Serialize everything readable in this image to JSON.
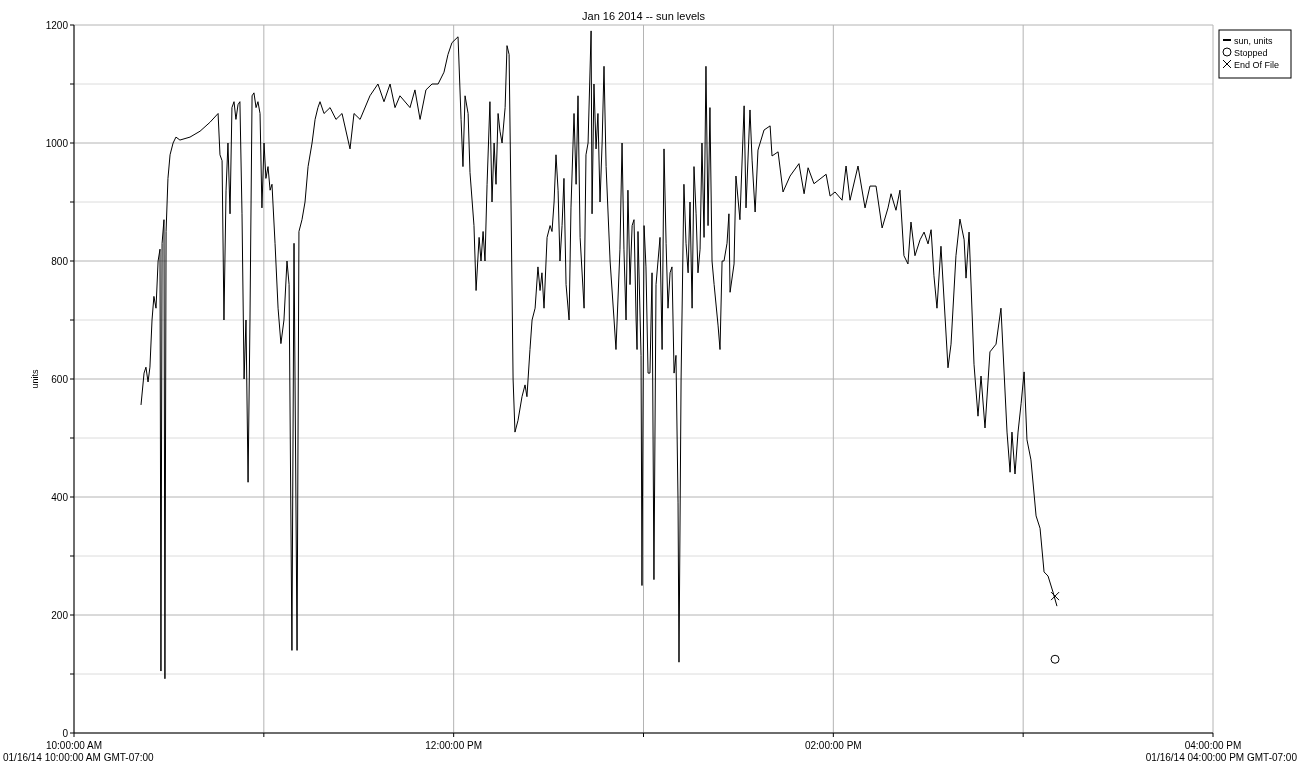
{
  "chart_data": {
    "type": "line",
    "title": "Jan 16 2014 -- sun levels",
    "ylabel": "units",
    "xlim": [
      10,
      16
    ],
    "xticks": [
      {
        "value": 10,
        "label": "10:00:00 AM"
      },
      {
        "value": 11,
        "label": null
      },
      {
        "value": 12,
        "label": "12:00:00 PM"
      },
      {
        "value": 13,
        "label": null
      },
      {
        "value": 14,
        "label": "02:00:00 PM"
      },
      {
        "value": 15,
        "label": null
      },
      {
        "value": 16,
        "label": "04:00:00 PM"
      }
    ],
    "ylim": [
      0,
      1200
    ],
    "yticks": [
      0,
      {
        "value": 100,
        "label": null
      },
      200,
      {
        "value": 300,
        "label": null
      },
      400,
      {
        "value": 500,
        "label": null
      },
      600,
      {
        "value": 700,
        "label": null
      },
      800,
      {
        "value": 900,
        "label": null
      },
      1000,
      {
        "value": 1100,
        "label": null
      },
      1200
    ],
    "grid": true,
    "legend": "top right",
    "annotations": [
      "01/16/14 10:00:00 AM GMT-07:00",
      "01/16/14 04:00:00 PM GMT-07:00"
    ],
    "series": [
      {
        "name": "sun, units",
        "color": "#000000",
        "marker": "none",
        "line_style": "solid",
        "x": [
          10.353,
          10.369,
          10.379,
          10.39,
          10.4,
          10.411,
          10.421,
          10.432,
          10.443,
          10.453,
          10.458,
          10.464,
          10.474,
          10.479,
          10.485,
          10.495,
          10.506,
          10.522,
          10.537,
          10.558,
          10.611,
          10.664,
          10.716,
          10.759,
          10.769,
          10.78,
          10.79,
          10.801,
          10.811,
          10.822,
          10.832,
          10.843,
          10.853,
          10.864,
          10.874,
          10.885,
          10.896,
          10.906,
          10.917,
          10.927,
          10.938,
          10.948,
          10.959,
          10.969,
          10.98,
          10.99,
          11.001,
          11.011,
          11.022,
          11.033,
          11.043,
          11.059,
          11.075,
          11.09,
          11.106,
          11.122,
          11.133,
          11.148,
          11.159,
          11.175,
          11.185,
          11.201,
          11.217,
          11.233,
          11.254,
          11.27,
          11.285,
          11.296,
          11.317,
          11.349,
          11.38,
          11.412,
          11.454,
          11.475,
          11.507,
          11.559,
          11.601,
          11.633,
          11.665,
          11.691,
          11.717,
          11.77,
          11.796,
          11.823,
          11.854,
          11.886,
          11.918,
          11.949,
          11.97,
          11.991,
          12.023,
          12.039,
          12.049,
          12.06,
          12.076,
          12.086,
          12.107,
          12.118,
          12.134,
          12.144,
          12.155,
          12.165,
          12.176,
          12.191,
          12.202,
          12.213,
          12.223,
          12.234,
          12.244,
          12.255,
          12.271,
          12.281,
          12.292,
          12.302,
          12.313,
          12.323,
          12.339,
          12.36,
          12.376,
          12.386,
          12.402,
          12.413,
          12.429,
          12.444,
          12.455,
          12.465,
          12.476,
          12.492,
          12.508,
          12.518,
          12.529,
          12.539,
          12.55,
          12.56,
          12.571,
          12.581,
          12.592,
          12.608,
          12.618,
          12.634,
          12.645,
          12.655,
          12.666,
          12.687,
          12.697,
          12.708,
          12.724,
          12.729,
          12.739,
          12.75,
          12.76,
          12.771,
          12.782,
          12.792,
          12.803,
          12.824,
          12.845,
          12.855,
          12.876,
          12.887,
          12.897,
          12.908,
          12.918,
          12.929,
          12.94,
          12.95,
          12.961,
          12.966,
          12.971,
          12.987,
          12.992,
          13.003,
          13.013,
          13.024,
          13.034,
          13.045,
          13.055,
          13.066,
          13.087,
          13.098,
          13.108,
          13.119,
          13.129,
          13.14,
          13.15,
          13.161,
          13.171,
          13.182,
          13.187,
          13.198,
          13.213,
          13.224,
          13.235,
          13.245,
          13.256,
          13.266,
          13.277,
          13.287,
          13.298,
          13.308,
          13.319,
          13.329,
          13.34,
          13.35,
          13.361,
          13.372,
          13.393,
          13.403,
          13.414,
          13.424,
          13.44,
          13.45,
          13.456,
          13.477,
          13.487,
          13.508,
          13.53,
          13.54,
          13.561,
          13.572,
          13.588,
          13.603,
          13.635,
          13.667,
          13.677,
          13.709,
          13.735,
          13.772,
          13.819,
          13.846,
          13.867,
          13.898,
          13.962,
          13.983,
          14.009,
          14.046,
          14.067,
          14.088,
          14.13,
          14.167,
          14.193,
          14.225,
          14.257,
          14.288,
          14.304,
          14.33,
          14.351,
          14.372,
          14.393,
          14.409,
          14.43,
          14.457,
          14.478,
          14.499,
          14.515,
          14.53,
          14.546,
          14.567,
          14.604,
          14.62,
          14.646,
          14.667,
          14.689,
          14.699,
          14.715,
          14.741,
          14.762,
          14.778,
          14.799,
          14.825,
          14.857,
          14.883,
          14.915,
          14.931,
          14.941,
          14.957,
          14.973,
          14.989,
          15.005,
          15.02,
          15.041,
          15.068,
          15.089,
          15.11,
          15.131,
          15.157,
          15.178
        ],
        "values": [
          556,
          610,
          620,
          595,
          620,
          700,
          740,
          720,
          800,
          820,
          105,
          830,
          870,
          92,
          850,
          940,
          980,
          1000,
          1010,
          1005,
          1010,
          1020,
          1035,
          1050,
          980,
          970,
          700,
          920,
          1000,
          880,
          1060,
          1070,
          1040,
          1065,
          1070,
          880,
          600,
          700,
          425,
          700,
          1080,
          1085,
          1060,
          1070,
          1050,
          890,
          1000,
          940,
          960,
          920,
          930,
          830,
          720,
          660,
          700,
          800,
          760,
          140,
          830,
          140,
          850,
          870,
          900,
          960,
          1000,
          1040,
          1060,
          1070,
          1050,
          1060,
          1040,
          1050,
          990,
          1050,
          1040,
          1080,
          1100,
          1070,
          1100,
          1060,
          1080,
          1060,
          1090,
          1040,
          1090,
          1100,
          1100,
          1120,
          1150,
          1170,
          1180,
          1040,
          960,
          1080,
          1050,
          950,
          860,
          750,
          840,
          800,
          850,
          800,
          930,
          1070,
          900,
          1000,
          930,
          1050,
          1020,
          1000,
          1060,
          1165,
          1150,
          900,
          600,
          510,
          530,
          570,
          590,
          570,
          650,
          700,
          720,
          790,
          750,
          780,
          720,
          840,
          860,
          850,
          900,
          980,
          920,
          800,
          860,
          940,
          760,
          700,
          890,
          1050,
          930,
          1080,
          840,
          720,
          980,
          1000,
          1190,
          880,
          1100,
          990,
          1050,
          900,
          1000,
          1130,
          960,
          800,
          700,
          650,
          820,
          1000,
          820,
          700,
          920,
          760,
          860,
          870,
          700,
          650,
          850,
          640,
          250,
          860,
          790,
          610,
          610,
          780,
          260,
          760,
          840,
          650,
          990,
          830,
          720,
          780,
          790,
          610,
          640,
          390,
          120,
          600,
          930,
          830,
          780,
          900,
          720,
          960,
          880,
          780,
          820,
          1000,
          840,
          1130,
          860,
          1060,
          800,
          760,
          690,
          650,
          800,
          800,
          830,
          880,
          747,
          795,
          944,
          870,
          1063,
          890,
          1056,
          971,
          883,
          988,
          1022,
          1029,
          978,
          985,
          917,
          944,
          965,
          914,
          958,
          931,
          947,
          910,
          917,
          903,
          961,
          903,
          961,
          890,
          927,
          927,
          856,
          890,
          914,
          886,
          920,
          809,
          795,
          866,
          809,
          836,
          849,
          829,
          853,
          775,
          720,
          825,
          619,
          659,
          809,
          871,
          836,
          771,
          849,
          625,
          537,
          605,
          517,
          646,
          659,
          720,
          510,
          442,
          510,
          439,
          510,
          558,
          612,
          497,
          463,
          368,
          347,
          273,
          266,
          239,
          215
        ]
      },
      {
        "name": "Stopped",
        "type": "scatter",
        "color": "#000000",
        "marker": "circle",
        "x": [
          15.168
        ],
        "values": [
          125
        ]
      },
      {
        "name": "End Of File",
        "type": "scatter",
        "color": "#000000",
        "marker": "cross",
        "x": [
          15.168
        ],
        "values": [
          232
        ]
      }
    ]
  }
}
